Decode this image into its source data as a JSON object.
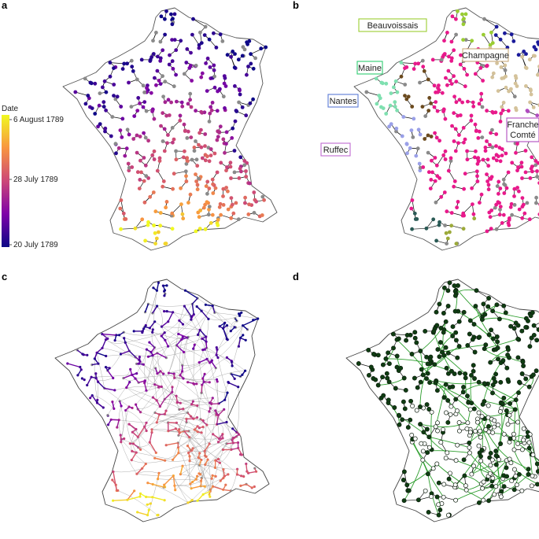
{
  "panels": [
    {
      "id": "a",
      "letter": "a"
    },
    {
      "id": "b",
      "letter": "b"
    },
    {
      "id": "c",
      "letter": "c"
    },
    {
      "id": "d",
      "letter": "d"
    }
  ],
  "colorbar": {
    "title": "Date",
    "ticks": [
      "6 August 1789",
      "28 July 1789",
      "20 July 1789"
    ],
    "colors": [
      "#f0f921",
      "#f89540",
      "#cc4778",
      "#7e03a8",
      "#0d0887"
    ]
  },
  "region_labels": [
    {
      "key": "beauvoissais",
      "text": "Beauvoissais",
      "color": "#9acd32"
    },
    {
      "key": "champagne",
      "text": "Champagne",
      "color": "#c8a97a"
    },
    {
      "key": "maine",
      "text": "Maine",
      "color": "#2ecc71"
    },
    {
      "key": "nantes",
      "text": "Nantes",
      "color": "#5b7bd5"
    },
    {
      "key": "franche",
      "text": "Franche\nComté",
      "color": "#b04bbf"
    },
    {
      "key": "ruffec",
      "text": "Ruffec",
      "color": "#c06ad0"
    }
  ],
  "colors": {
    "gray_node": "#8a8a8a",
    "edge": "#111111",
    "magenta": "#e8198b",
    "road_gray": "#9a9a9a",
    "road_green": "#2e9e2e",
    "dark_green": "#0f3d12"
  }
}
